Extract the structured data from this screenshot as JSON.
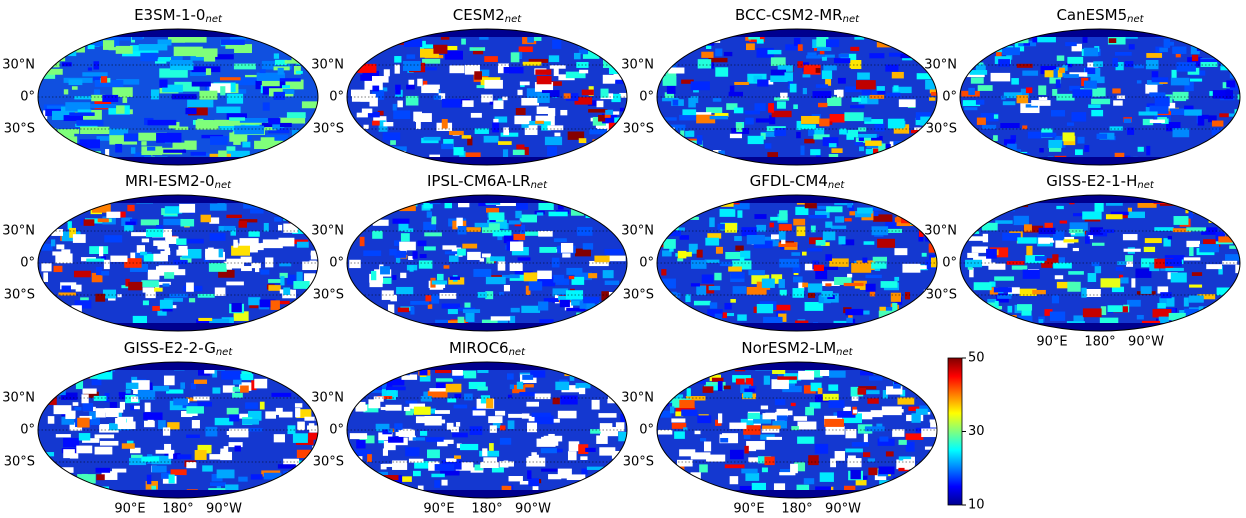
{
  "chart_data": {
    "type": "map_grid",
    "lat_labels": [
      "30°N",
      "0°",
      "30°S"
    ],
    "lon_labels": [
      "90°E",
      "180°",
      "90°W"
    ],
    "panels": [
      {
        "name": "E3SM-1-0",
        "subscript": "net",
        "show_lon": false
      },
      {
        "name": "CESM2",
        "subscript": "net",
        "show_lon": false
      },
      {
        "name": "BCC-CSM2-MR",
        "subscript": "net",
        "show_lon": false
      },
      {
        "name": "CanESM5",
        "subscript": "net",
        "show_lon": false
      },
      {
        "name": "MRI-ESM2-0",
        "subscript": "net",
        "show_lon": false
      },
      {
        "name": "IPSL-CM6A-LR",
        "subscript": "net",
        "show_lon": false
      },
      {
        "name": "GFDL-CM4",
        "subscript": "net",
        "show_lon": false
      },
      {
        "name": "GISS-E2-1-H",
        "subscript": "net",
        "show_lon": true
      },
      {
        "name": "GISS-E2-2-G",
        "subscript": "net",
        "show_lon": true
      },
      {
        "name": "MIROC6",
        "subscript": "net",
        "show_lon": true
      },
      {
        "name": "NorESM2-LM",
        "subscript": "net",
        "show_lon": true
      }
    ],
    "colorbar": {
      "clim": [
        10,
        50
      ],
      "ticks": [
        10,
        30,
        50
      ],
      "colormap": "jet"
    }
  }
}
